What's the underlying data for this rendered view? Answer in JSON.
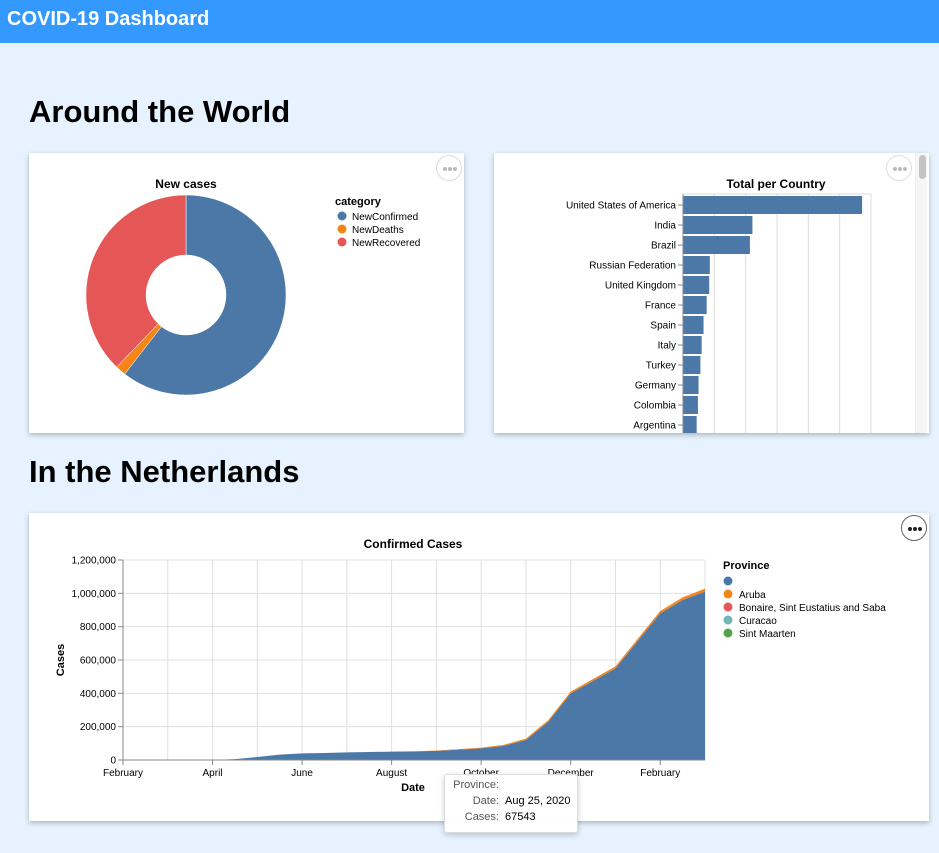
{
  "header": {
    "title": "COVID-19 Dashboard"
  },
  "sections": {
    "world": "Around the World",
    "netherlands": "In the Netherlands"
  },
  "colors": {
    "header": "#3399ff",
    "background": "#e6f2ff",
    "blue": "#4c78a8",
    "orange": "#f58518",
    "red": "#e45756",
    "teal": "#72b7b2",
    "green": "#54a24b"
  },
  "icons": {
    "menu": "more-horizontal-icon"
  },
  "pie_chart": {
    "chart_data": {
      "type": "pie",
      "title": "New cases",
      "legend_title": "category",
      "legend_position": "right",
      "slices": [
        {
          "label": "NewConfirmed",
          "value": 60.5,
          "color": "#4c78a8"
        },
        {
          "label": "NewDeaths",
          "value": 1.7,
          "color": "#f58518"
        },
        {
          "label": "NewRecovered",
          "value": 37.8,
          "color": "#e45756"
        }
      ]
    }
  },
  "bar_chart": {
    "chart_data": {
      "type": "bar",
      "orientation": "horizontal",
      "title": "Total per Country",
      "categories": [
        "United States of America",
        "India",
        "Brazil",
        "Russian Federation",
        "United Kingdom",
        "France",
        "Spain",
        "Italy",
        "Turkey",
        "Germany",
        "Colombia",
        "Argentina"
      ],
      "values": [
        28.5,
        11.0,
        10.6,
        4.2,
        4.1,
        3.7,
        3.2,
        2.9,
        2.7,
        2.4,
        2.3,
        2.1
      ],
      "xlim": [
        0,
        30
      ],
      "grid": true,
      "color": "#4c78a8"
    }
  },
  "area_chart": {
    "chart_data": {
      "type": "area",
      "title": "Confirmed Cases",
      "xlabel": "Date",
      "ylabel": "Cases",
      "ylim": [
        0,
        1200000
      ],
      "x_ticks": [
        "February",
        "April",
        "June",
        "August",
        "October",
        "December",
        "February"
      ],
      "y_ticks": [
        "0",
        "200,000",
        "400,000",
        "600,000",
        "800,000",
        "1,000,000",
        "1,200,000"
      ],
      "legend_title": "Province",
      "legend_position": "right",
      "legend": [
        {
          "label": "",
          "color": "#4c78a8"
        },
        {
          "label": "Aruba",
          "color": "#f58518"
        },
        {
          "label": "Bonaire, Sint Eustatius and Saba",
          "color": "#e45756"
        },
        {
          "label": "Curacao",
          "color": "#72b7b2"
        },
        {
          "label": "Sint Maarten",
          "color": "#54a24b"
        }
      ],
      "x_months": [
        0,
        0.5,
        1,
        1.5,
        2,
        2.5,
        3,
        3.5,
        4,
        4.5,
        5,
        5.5,
        6,
        6.5,
        7,
        7.5,
        8,
        8.5,
        9,
        9.5,
        10,
        10.5,
        11,
        11.5,
        12,
        12.5,
        13
      ],
      "series": [
        {
          "name": "",
          "values": [
            0,
            0,
            0,
            0,
            0,
            5000,
            18000,
            32000,
            40000,
            42000,
            46000,
            48000,
            50000,
            52000,
            55000,
            62000,
            70000,
            85000,
            120000,
            230000,
            400000,
            475000,
            550000,
            715000,
            880000,
            960000,
            1010000
          ],
          "color": "#4c78a8"
        },
        {
          "name": "",
          "values": [
            0,
            0,
            0,
            0,
            0,
            0,
            0,
            0,
            0,
            0,
            0,
            0,
            0,
            0,
            2000,
            3000,
            4000,
            6000,
            8000,
            9000,
            10000,
            11000,
            12000,
            13000,
            14000,
            16000,
            18000
          ],
          "color": "#f58518"
        }
      ]
    },
    "tooltip": {
      "province_label": "Province:",
      "date_label": "Date:",
      "date_value": "Aug 25, 2020",
      "cases_label": "Cases:",
      "cases_value": "67543"
    }
  }
}
